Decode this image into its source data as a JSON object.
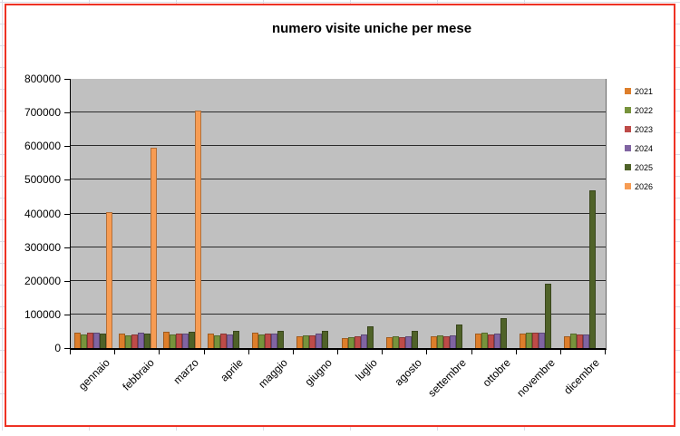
{
  "chart_data": {
    "type": "bar",
    "title": "numero visite uniche per mese",
    "categories": [
      "gennaio",
      "febbraio",
      "marzo",
      "aprile",
      "maggio",
      "giugno",
      "luglio",
      "agosto",
      "settembre",
      "ottobre",
      "novembre",
      "dicembre"
    ],
    "series": [
      {
        "name": "2021",
        "color": "#dd7e2b",
        "values": [
          47000,
          43000,
          48000,
          44000,
          46000,
          35000,
          30000,
          33000,
          36000,
          42000,
          43000,
          36000
        ]
      },
      {
        "name": "2022",
        "color": "#77933c",
        "values": [
          40000,
          38000,
          40000,
          38000,
          40000,
          37000,
          32000,
          35000,
          39000,
          45000,
          46000,
          42000
        ]
      },
      {
        "name": "2023",
        "color": "#be4b48",
        "values": [
          47000,
          40000,
          44000,
          43000,
          42000,
          38000,
          36000,
          33000,
          34000,
          40000,
          45000,
          41000
        ]
      },
      {
        "name": "2024",
        "color": "#8064a2",
        "values": [
          45000,
          47000,
          42000,
          41000,
          44000,
          42000,
          40000,
          35000,
          38000,
          42000,
          45000,
          41000
        ]
      },
      {
        "name": "2025",
        "color": "#4f6228",
        "values": [
          42000,
          43000,
          49000,
          51000,
          52000,
          52000,
          66000,
          50000,
          70000,
          90000,
          190000,
          470000
        ]
      },
      {
        "name": "2026",
        "color": "#f79c53",
        "values": [
          405000,
          595000,
          705000,
          0,
          0,
          0,
          0,
          0,
          0,
          0,
          0,
          0
        ]
      }
    ],
    "ylim": [
      0,
      800000
    ],
    "ytick_step": 100000,
    "ytick_labels": [
      "0",
      "100000",
      "200000",
      "300000",
      "400000",
      "500000",
      "600000",
      "700000",
      "800000"
    ],
    "xlabel": "",
    "ylabel": "",
    "grid": true,
    "legend_position": "right",
    "plot_bg_color": "#c0c0c0",
    "frame_border_color": "#ee3224"
  }
}
